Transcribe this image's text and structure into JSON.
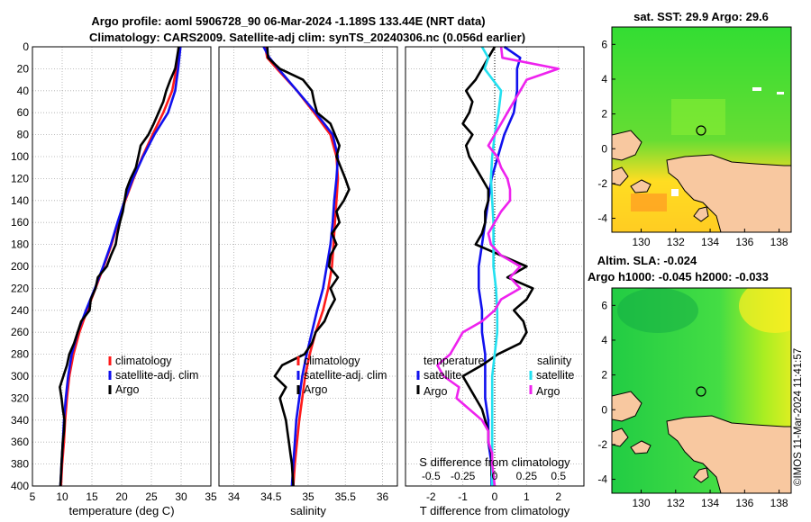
{
  "title_line1": "Argo profile: aoml 5906728_90 06-Mar-2024 -1.189S 133.44E (NRT data)",
  "title_line2": "Climatology: CARS2009. Satellite-adj clim: synTS_20240306.nc (0.056d earlier)",
  "sst_title": "sat. SST: 29.9 Argo: 29.6",
  "sla_title1": "Altim. SLA: -0.024",
  "sla_title2": "Argo h1000: -0.045 h2000: -0.033",
  "credit": "©IMOS 11-Mar-2024 11:41:57",
  "colors": {
    "argo": "#000000",
    "climatology": "#ff1a1a",
    "satellite": "#1010ee",
    "sal_sat": "#22e0f0",
    "sal_argo": "#ee22ee",
    "land": "#f8c8a0"
  },
  "chart_data": [
    {
      "type": "line",
      "name": "temperature-panel",
      "xlabel": "temperature (deg C)",
      "xlim": [
        5,
        35
      ],
      "ylim": [
        400,
        0
      ],
      "xticks": [
        "5",
        "10",
        "15",
        "20",
        "25",
        "30",
        "35"
      ],
      "yticks": [
        "0",
        "20",
        "40",
        "60",
        "80",
        "100",
        "120",
        "140",
        "160",
        "180",
        "200",
        "220",
        "240",
        "260",
        "280",
        "300",
        "320",
        "340",
        "360",
        "380",
        "400"
      ],
      "legend": [
        "climatology",
        "satellite-adj. clim",
        "Argo"
      ],
      "series": [
        {
          "name": "climatology",
          "depth": [
            0,
            20,
            40,
            60,
            80,
            100,
            120,
            140,
            160,
            180,
            200,
            220,
            240,
            260,
            280,
            300,
            320,
            340,
            360,
            380,
            400
          ],
          "values": [
            29.6,
            29.2,
            28.5,
            27.0,
            25.2,
            23.5,
            22.0,
            20.6,
            19.4,
            18.3,
            17.0,
            15.6,
            14.2,
            12.9,
            11.9,
            11.2,
            10.8,
            10.5,
            10.3,
            10.0,
            9.8
          ]
        },
        {
          "name": "satellite-adj. clim",
          "depth": [
            0,
            20,
            40,
            60,
            80,
            100,
            120,
            140,
            160,
            180,
            200,
            220,
            240,
            260,
            280,
            300,
            320,
            340,
            360,
            380,
            400
          ],
          "values": [
            29.9,
            29.5,
            29.0,
            27.8,
            25.5,
            23.6,
            21.9,
            20.5,
            19.3,
            18.2,
            16.9,
            15.5,
            14.0,
            12.6,
            11.6,
            11.0,
            10.6,
            10.3,
            10.1,
            9.9,
            9.7
          ]
        },
        {
          "name": "Argo",
          "depth": [
            0,
            10,
            20,
            30,
            40,
            50,
            60,
            70,
            80,
            90,
            100,
            110,
            120,
            130,
            140,
            150,
            160,
            170,
            180,
            190,
            200,
            210,
            220,
            230,
            240,
            250,
            260,
            270,
            280,
            290,
            300,
            310,
            320,
            330,
            340,
            350,
            360,
            370,
            380,
            390,
            400
          ],
          "values": [
            29.6,
            29.3,
            29.0,
            28.2,
            27.5,
            27.0,
            26.2,
            25.4,
            24.5,
            23.2,
            22.8,
            22.4,
            21.5,
            20.8,
            20.5,
            20.2,
            19.7,
            19.3,
            19.0,
            18.2,
            17.5,
            16.0,
            15.6,
            14.8,
            14.6,
            13.2,
            12.6,
            12.0,
            11.2,
            10.8,
            10.2,
            9.6,
            9.9,
            10.1,
            10.4,
            10.3,
            10.1,
            10.0,
            9.9,
            9.8,
            9.7
          ]
        }
      ]
    },
    {
      "type": "line",
      "name": "salinity-panel",
      "xlabel": "salinity",
      "xlim": [
        33.8,
        36.2
      ],
      "ylim": [
        400,
        0
      ],
      "xticks": [
        "34",
        "34.5",
        "35",
        "35.5",
        "36"
      ],
      "legend": [
        "climatology",
        "satellite-adj. clim",
        "Argo"
      ],
      "series": [
        {
          "name": "climatology",
          "depth": [
            0,
            10,
            20,
            40,
            60,
            80,
            100,
            120,
            140,
            160,
            180,
            200,
            220,
            240,
            260,
            280,
            300,
            320,
            340,
            360,
            380,
            400
          ],
          "values": [
            34.42,
            34.45,
            34.58,
            34.85,
            35.08,
            35.3,
            35.38,
            35.4,
            35.38,
            35.36,
            35.34,
            35.32,
            35.27,
            35.2,
            35.1,
            35.02,
            34.96,
            34.92,
            34.88,
            34.85,
            34.82,
            34.8
          ]
        },
        {
          "name": "satellite-adj. clim",
          "depth": [
            0,
            10,
            20,
            40,
            60,
            80,
            100,
            120,
            140,
            160,
            180,
            200,
            220,
            240,
            260,
            280,
            300,
            320,
            340,
            360,
            380,
            400
          ],
          "values": [
            34.4,
            34.48,
            34.6,
            34.85,
            35.1,
            35.33,
            35.4,
            35.38,
            35.35,
            35.33,
            35.3,
            35.25,
            35.2,
            35.12,
            35.05,
            34.98,
            34.92,
            34.88,
            34.84,
            34.82,
            34.8,
            34.78
          ]
        },
        {
          "name": "Argo",
          "depth": [
            0,
            10,
            20,
            30,
            40,
            50,
            60,
            70,
            80,
            90,
            100,
            110,
            120,
            130,
            140,
            150,
            160,
            170,
            180,
            190,
            200,
            210,
            220,
            230,
            240,
            250,
            260,
            270,
            280,
            290,
            300,
            310,
            320,
            330,
            340,
            350,
            360,
            370,
            380,
            390,
            400
          ],
          "values": [
            34.45,
            34.46,
            34.62,
            34.93,
            35.05,
            35.08,
            35.12,
            35.3,
            35.36,
            35.42,
            35.38,
            35.44,
            35.5,
            35.55,
            35.48,
            35.38,
            35.42,
            35.32,
            35.38,
            35.3,
            35.28,
            35.4,
            35.3,
            35.36,
            35.28,
            35.22,
            35.1,
            35.05,
            34.95,
            34.65,
            34.55,
            34.7,
            34.62,
            34.66,
            34.7,
            34.72,
            34.74,
            34.76,
            34.78,
            34.79,
            34.8
          ]
        }
      ]
    },
    {
      "type": "line",
      "name": "difference-panel",
      "xlabel": "T difference from climatology",
      "xlabel_top": "S difference from climatology",
      "xlim": [
        -2.8,
        2.8
      ],
      "ylim": [
        400,
        0
      ],
      "xticks": [
        "-2",
        "-1",
        "0",
        "1",
        "2"
      ],
      "top_ticks": [
        "-0.5",
        "-0.25",
        "0",
        "0.25",
        "0.5"
      ],
      "legend_temperature": [
        "temperature",
        "satellite",
        "Argo"
      ],
      "legend_salinity": [
        "salinity",
        "satellite",
        "Argo"
      ],
      "series": [
        {
          "name": "T satellite",
          "depth": [
            0,
            10,
            20,
            40,
            60,
            80,
            100,
            120,
            140,
            160,
            180,
            200,
            220,
            240,
            260,
            280,
            300,
            320,
            340,
            360,
            380,
            400
          ],
          "values": [
            0.3,
            0.8,
            0.7,
            0.7,
            0.6,
            0.3,
            0.1,
            -0.1,
            -0.2,
            -0.3,
            -0.4,
            -0.5,
            -0.5,
            -0.4,
            -0.4,
            -0.3,
            -0.3,
            -0.3,
            -0.2,
            -0.2,
            -0.1,
            -0.1
          ]
        },
        {
          "name": "T Argo",
          "depth": [
            0,
            10,
            20,
            30,
            40,
            50,
            60,
            70,
            80,
            90,
            100,
            110,
            120,
            130,
            140,
            150,
            160,
            170,
            180,
            190,
            200,
            210,
            220,
            230,
            240,
            250,
            260,
            270,
            280,
            290,
            300,
            310,
            320,
            330,
            340,
            350,
            360,
            370,
            380,
            390,
            400
          ],
          "values": [
            0.0,
            -0.2,
            -0.4,
            -0.6,
            -0.9,
            -0.7,
            -0.8,
            -1.0,
            -0.7,
            -0.9,
            -0.8,
            -0.6,
            -0.4,
            -0.2,
            -0.2,
            -0.3,
            -0.3,
            -0.4,
            -0.6,
            0.2,
            1.0,
            0.4,
            1.2,
            1.0,
            0.6,
            0.9,
            1.0,
            0.8,
            0.1,
            -0.4,
            -1.0,
            -0.8,
            -0.6,
            -0.4,
            -0.3,
            -0.2,
            -0.2,
            -0.1,
            -0.1,
            -0.1,
            0.0
          ]
        },
        {
          "name": "S satellite",
          "depth": [
            0,
            10,
            20,
            40,
            60,
            80,
            100,
            120,
            140,
            160,
            180,
            200,
            220,
            240,
            260,
            280,
            300,
            320,
            340,
            360,
            380,
            400
          ],
          "values": [
            -0.1,
            -0.05,
            -0.08,
            0.05,
            0.03,
            0.0,
            -0.02,
            -0.03,
            -0.02,
            -0.01,
            -0.01,
            -0.01,
            0.01,
            0.02,
            0.02,
            0.0,
            -0.02,
            -0.02,
            -0.02,
            -0.02,
            -0.02,
            -0.02
          ]
        },
        {
          "name": "S Argo",
          "depth": [
            0,
            10,
            20,
            30,
            40,
            50,
            60,
            70,
            80,
            90,
            100,
            110,
            120,
            130,
            140,
            150,
            160,
            170,
            180,
            190,
            200,
            210,
            220,
            230,
            240,
            250,
            260,
            270,
            280,
            290,
            300,
            310,
            320,
            330,
            340,
            350,
            360,
            370,
            380,
            390,
            400
          ],
          "values": [
            0.05,
            0.06,
            0.5,
            0.25,
            0.2,
            0.15,
            0.1,
            0.05,
            0.0,
            -0.05,
            0.02,
            0.05,
            0.1,
            0.12,
            0.12,
            0.05,
            0.0,
            -0.05,
            -0.03,
            0.05,
            0.2,
            0.12,
            0.2,
            0.05,
            0.0,
            -0.1,
            -0.25,
            -0.3,
            -0.35,
            -0.45,
            -0.4,
            -0.28,
            -0.3,
            -0.2,
            -0.1,
            -0.05,
            -0.05,
            -0.02,
            -0.02,
            -0.01,
            0.0
          ]
        }
      ]
    },
    {
      "type": "heatmap",
      "name": "sst-map",
      "title": "sat. SST: 29.9 Argo: 29.6",
      "xlim": [
        128.3,
        138.7
      ],
      "ylim": [
        -4.8,
        7.0
      ],
      "xticks": [
        "130",
        "132",
        "134",
        "136",
        "138"
      ],
      "yticks": [
        "6",
        "4",
        "2",
        "0",
        "-2",
        "-4"
      ],
      "marker": {
        "lon": 133.44,
        "lat": 1.19
      }
    },
    {
      "type": "heatmap",
      "name": "sla-map",
      "title": "Altim. SLA: -0.024",
      "xlim": [
        128.3,
        138.7
      ],
      "ylim": [
        -4.8,
        7.0
      ],
      "xticks": [
        "130",
        "132",
        "134",
        "136",
        "138"
      ],
      "yticks": [
        "6",
        "4",
        "2",
        "0",
        "-2",
        "-4"
      ],
      "marker": {
        "lon": 133.44,
        "lat": 1.19
      }
    }
  ]
}
